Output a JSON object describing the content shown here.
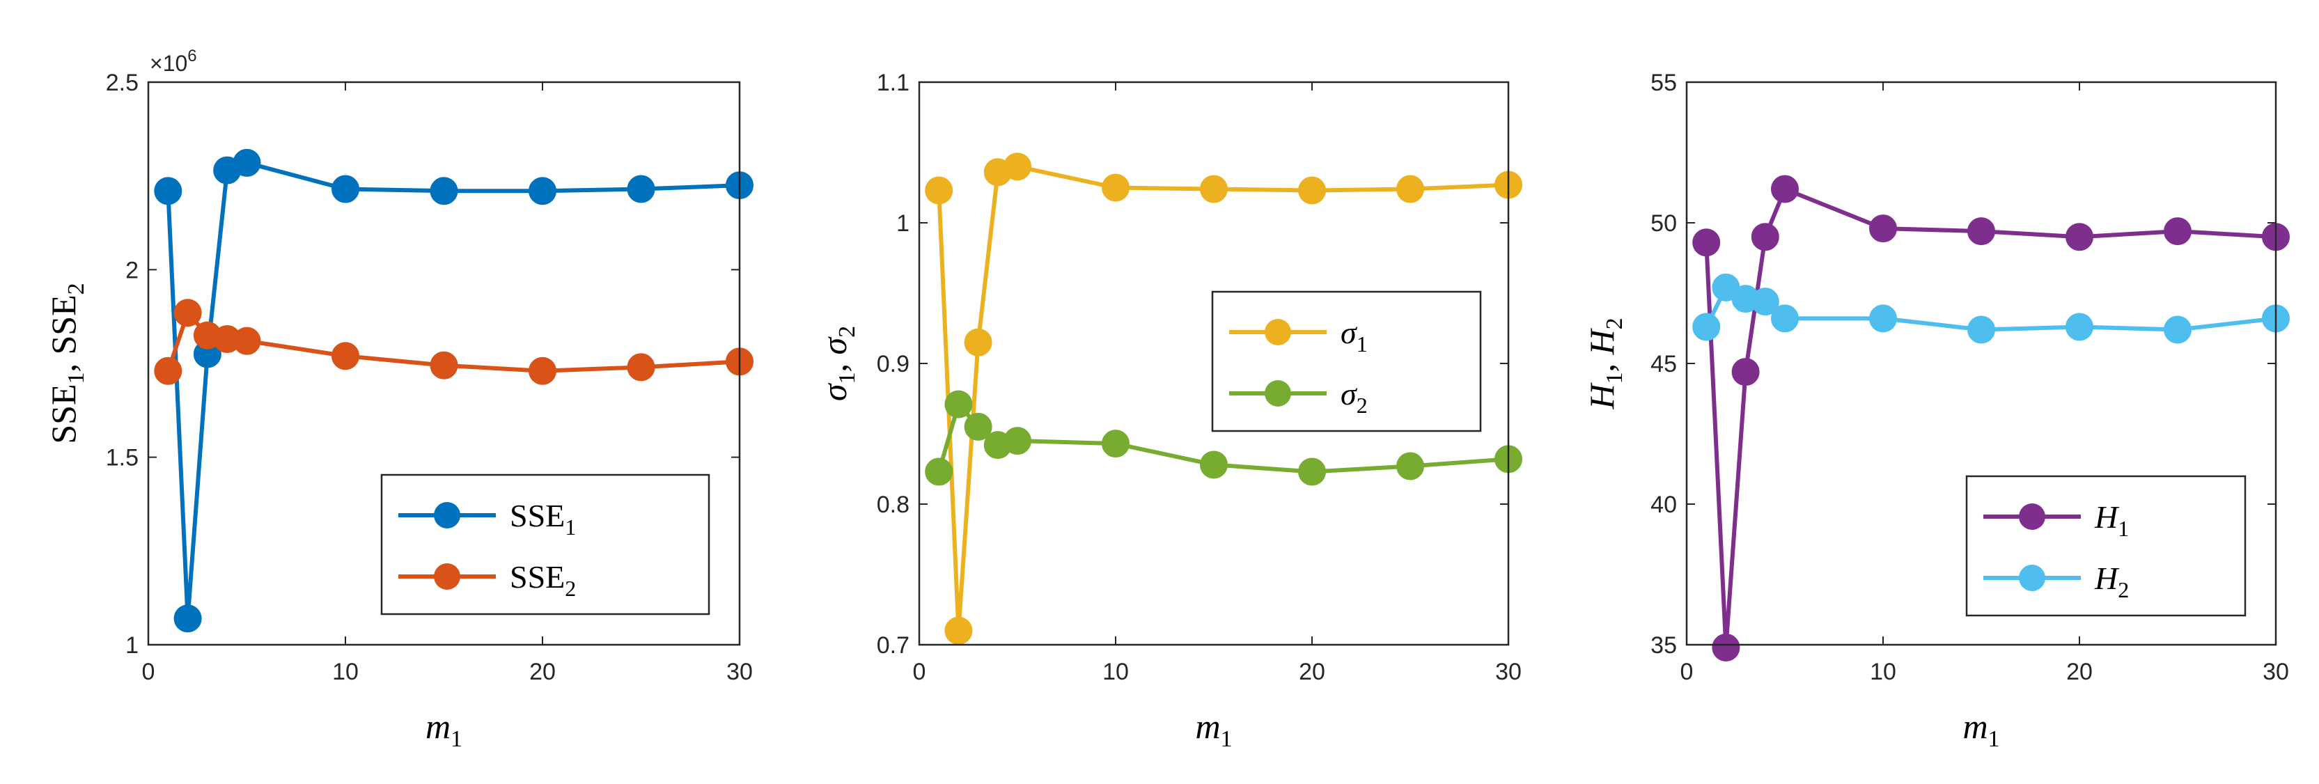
{
  "chart_data": [
    {
      "type": "line",
      "xlabel": "m",
      "xlabel_sub": "1",
      "ylabel": "SSE",
      "ylabel_parts": [
        {
          "text": "SSE",
          "sub": "1"
        },
        {
          "text": "SSE",
          "sub": "2"
        }
      ],
      "ylabel_italic": false,
      "xlim": [
        0,
        30
      ],
      "ylim": [
        1000000,
        2500000
      ],
      "xticks": [
        0,
        10,
        20,
        30
      ],
      "xtick_labels": [
        "0",
        "10",
        "20",
        "30"
      ],
      "yticks": [
        1000000,
        1500000,
        2000000,
        2500000
      ],
      "ytick_labels": [
        "1",
        "1.5",
        "2",
        "2.5"
      ],
      "y_multiplier": "×10",
      "y_multiplier_exp": "6",
      "legend_position": "bottom-right",
      "legend_italic": false,
      "series": [
        {
          "name": "SSE",
          "name_sub": "1",
          "color": "#0072BD",
          "x": [
            1,
            2,
            3,
            4,
            5,
            10,
            15,
            20,
            25,
            30
          ],
          "y": [
            2210000,
            1070000,
            1775000,
            2265000,
            2285000,
            2215000,
            2210000,
            2210000,
            2215000,
            2225000
          ]
        },
        {
          "name": "SSE",
          "name_sub": "2",
          "color": "#D95319",
          "x": [
            1,
            2,
            3,
            4,
            5,
            10,
            15,
            20,
            25,
            30
          ],
          "y": [
            1730000,
            1885000,
            1825000,
            1815000,
            1810000,
            1770000,
            1745000,
            1730000,
            1740000,
            1755000
          ]
        }
      ]
    },
    {
      "type": "line",
      "xlabel": "m",
      "xlabel_sub": "1",
      "ylabel": "σ",
      "ylabel_parts": [
        {
          "text": "σ",
          "sub": "1"
        },
        {
          "text": "σ",
          "sub": "2"
        }
      ],
      "ylabel_italic": true,
      "xlim": [
        0,
        30
      ],
      "ylim": [
        0.7,
        1.1
      ],
      "xticks": [
        0,
        10,
        20,
        30
      ],
      "xtick_labels": [
        "0",
        "10",
        "20",
        "30"
      ],
      "yticks": [
        0.7,
        0.8,
        0.9,
        1.0,
        1.1
      ],
      "ytick_labels": [
        "0.7",
        "0.8",
        "0.9",
        "1",
        "1.1"
      ],
      "legend_position": "center-right",
      "legend_italic": true,
      "series": [
        {
          "name": "σ",
          "name_sub": "1",
          "color": "#EDB120",
          "x": [
            1,
            2,
            3,
            4,
            5,
            10,
            15,
            20,
            25,
            30
          ],
          "y": [
            1.023,
            0.71,
            0.915,
            1.036,
            1.04,
            1.025,
            1.024,
            1.023,
            1.024,
            1.027
          ]
        },
        {
          "name": "σ",
          "name_sub": "2",
          "color": "#77AC30",
          "x": [
            1,
            2,
            3,
            4,
            5,
            10,
            15,
            20,
            25,
            30
          ],
          "y": [
            0.823,
            0.871,
            0.855,
            0.842,
            0.845,
            0.843,
            0.828,
            0.823,
            0.827,
            0.832
          ]
        }
      ]
    },
    {
      "type": "line",
      "xlabel": "m",
      "xlabel_sub": "1",
      "ylabel": "H",
      "ylabel_parts": [
        {
          "text": "H",
          "sub": "1"
        },
        {
          "text": "H",
          "sub": "2"
        }
      ],
      "ylabel_italic": true,
      "xlim": [
        0,
        30
      ],
      "ylim": [
        35,
        55
      ],
      "xticks": [
        0,
        10,
        20,
        30
      ],
      "xtick_labels": [
        "0",
        "10",
        "20",
        "30"
      ],
      "yticks": [
        35,
        40,
        45,
        50,
        55
      ],
      "ytick_labels": [
        "35",
        "40",
        "45",
        "50",
        "55"
      ],
      "legend_position": "bottom-right",
      "legend_italic": true,
      "series": [
        {
          "name": "H",
          "name_sub": "1",
          "color": "#7E2F8E",
          "x": [
            1,
            2,
            3,
            4,
            5,
            10,
            15,
            20,
            25,
            30
          ],
          "y": [
            49.3,
            34.9,
            44.7,
            49.5,
            51.2,
            49.8,
            49.7,
            49.5,
            49.7,
            49.5
          ]
        },
        {
          "name": "H",
          "name_sub": "2",
          "color": "#4DBEEE",
          "x": [
            1,
            2,
            3,
            4,
            5,
            10,
            15,
            20,
            25,
            30
          ],
          "y": [
            46.3,
            47.7,
            47.3,
            47.2,
            46.6,
            46.6,
            46.2,
            46.3,
            46.2,
            46.6
          ]
        }
      ]
    }
  ]
}
